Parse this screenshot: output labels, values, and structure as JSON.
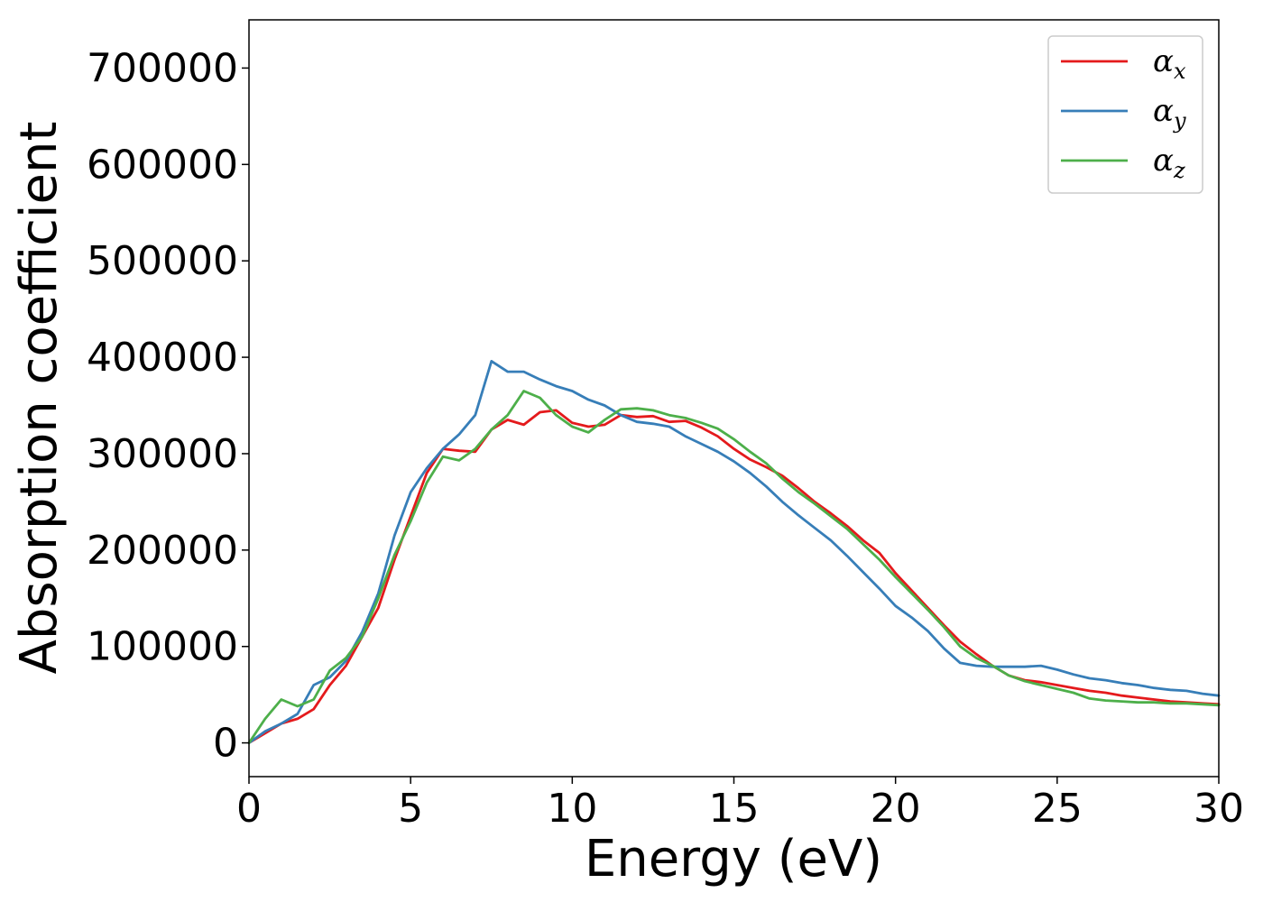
{
  "chart_data": {
    "type": "line",
    "title": "",
    "xlabel": "Energy (eV)",
    "ylabel": "Absorption coefficient",
    "xlim": [
      0,
      30
    ],
    "ylim": [
      -35000,
      750000
    ],
    "xticks": [
      0,
      5,
      10,
      15,
      20,
      25,
      30
    ],
    "xtick_labels": [
      "0",
      "5",
      "10",
      "15",
      "20",
      "25",
      "30"
    ],
    "yticks": [
      0,
      100000,
      200000,
      300000,
      400000,
      500000,
      600000,
      700000
    ],
    "ytick_labels": [
      "0",
      "100000",
      "200000",
      "300000",
      "400000",
      "500000",
      "600000",
      "700000"
    ],
    "grid": false,
    "legend_position": "top-right",
    "series": [
      {
        "name": "α",
        "subscript": "x",
        "color": "#e41a1c",
        "x": [
          0,
          0.5,
          1.0,
          1.5,
          2.0,
          2.5,
          3.0,
          3.5,
          4.0,
          4.5,
          5.0,
          5.5,
          6.0,
          6.5,
          7.0,
          7.5,
          8.0,
          8.5,
          9.0,
          9.5,
          10.0,
          10.5,
          11.0,
          11.5,
          12.0,
          12.5,
          13.0,
          13.5,
          14.0,
          14.5,
          15.0,
          15.5,
          16.0,
          16.5,
          17.0,
          17.5,
          18.0,
          18.5,
          19.0,
          19.5,
          20.0,
          20.5,
          21.0,
          21.5,
          22.0,
          22.5,
          23.0,
          23.5,
          24.0,
          24.5,
          25.0,
          25.5,
          26.0,
          26.5,
          27.0,
          27.5,
          28.0,
          28.5,
          29.0,
          29.5,
          30.0
        ],
        "y": [
          0,
          10000,
          20000,
          25000,
          35000,
          60000,
          80000,
          110000,
          140000,
          190000,
          235000,
          280000,
          305000,
          303000,
          302000,
          325000,
          335000,
          330000,
          343000,
          345000,
          332000,
          328000,
          330000,
          340000,
          338000,
          339000,
          333000,
          334000,
          327000,
          318000,
          305000,
          294000,
          286000,
          277000,
          264000,
          250000,
          238000,
          225000,
          210000,
          197000,
          176000,
          158000,
          140000,
          122000,
          105000,
          92000,
          80000,
          70000,
          65000,
          63000,
          60000,
          57000,
          54000,
          52000,
          49000,
          47000,
          45000,
          43000,
          42000,
          41000,
          40000
        ]
      },
      {
        "name": "α",
        "subscript": "y",
        "color": "#377eb8",
        "x": [
          0,
          0.5,
          1.0,
          1.5,
          2.0,
          2.5,
          3.0,
          3.5,
          4.0,
          4.5,
          5.0,
          5.5,
          6.0,
          6.5,
          7.0,
          7.5,
          8.0,
          8.5,
          9.0,
          9.5,
          10.0,
          10.5,
          11.0,
          11.5,
          12.0,
          12.5,
          13.0,
          13.5,
          14.0,
          14.5,
          15.0,
          15.5,
          16.0,
          16.5,
          17.0,
          17.5,
          18.0,
          18.5,
          19.0,
          19.5,
          20.0,
          20.5,
          21.0,
          21.5,
          22.0,
          22.5,
          23.0,
          23.5,
          24.0,
          24.5,
          25.0,
          25.5,
          26.0,
          26.5,
          27.0,
          27.5,
          28.0,
          28.5,
          29.0,
          29.5,
          30.0
        ],
        "y": [
          0,
          12000,
          20000,
          30000,
          60000,
          68000,
          85000,
          115000,
          155000,
          215000,
          260000,
          285000,
          305000,
          320000,
          340000,
          396000,
          385000,
          385000,
          377000,
          370000,
          365000,
          356000,
          350000,
          340000,
          333000,
          331000,
          328000,
          318000,
          310000,
          302000,
          292000,
          280000,
          266000,
          250000,
          236000,
          223000,
          210000,
          194000,
          177000,
          160000,
          142000,
          130000,
          116000,
          98000,
          83000,
          80000,
          79000,
          79000,
          79000,
          80000,
          76000,
          71000,
          67000,
          65000,
          62000,
          60000,
          57000,
          55000,
          54000,
          51000,
          49000
        ]
      },
      {
        "name": "α",
        "subscript": "z",
        "color": "#4daf4a",
        "x": [
          0,
          0.5,
          1.0,
          1.5,
          2.0,
          2.5,
          3.0,
          3.5,
          4.0,
          4.5,
          5.0,
          5.5,
          6.0,
          6.5,
          7.0,
          7.5,
          8.0,
          8.5,
          9.0,
          9.5,
          10.0,
          10.5,
          11.0,
          11.5,
          12.0,
          12.5,
          13.0,
          13.5,
          14.0,
          14.5,
          15.0,
          15.5,
          16.0,
          16.5,
          17.0,
          17.5,
          18.0,
          18.5,
          19.0,
          19.5,
          20.0,
          20.5,
          21.0,
          21.5,
          22.0,
          22.5,
          23.0,
          23.5,
          24.0,
          24.5,
          25.0,
          25.5,
          26.0,
          26.5,
          27.0,
          27.5,
          28.0,
          28.5,
          29.0,
          29.5,
          30.0
        ],
        "y": [
          0,
          25000,
          45000,
          38000,
          45000,
          75000,
          88000,
          110000,
          150000,
          195000,
          230000,
          270000,
          297000,
          293000,
          305000,
          325000,
          340000,
          365000,
          358000,
          340000,
          328000,
          322000,
          335000,
          346000,
          347000,
          345000,
          340000,
          337000,
          332000,
          326000,
          315000,
          302000,
          290000,
          274000,
          260000,
          248000,
          235000,
          222000,
          206000,
          190000,
          172000,
          155000,
          138000,
          120000,
          100000,
          88000,
          80000,
          70000,
          64000,
          60000,
          56000,
          52000,
          46000,
          44000,
          43000,
          42000,
          42000,
          41000,
          41000,
          40000,
          39000
        ]
      }
    ]
  }
}
